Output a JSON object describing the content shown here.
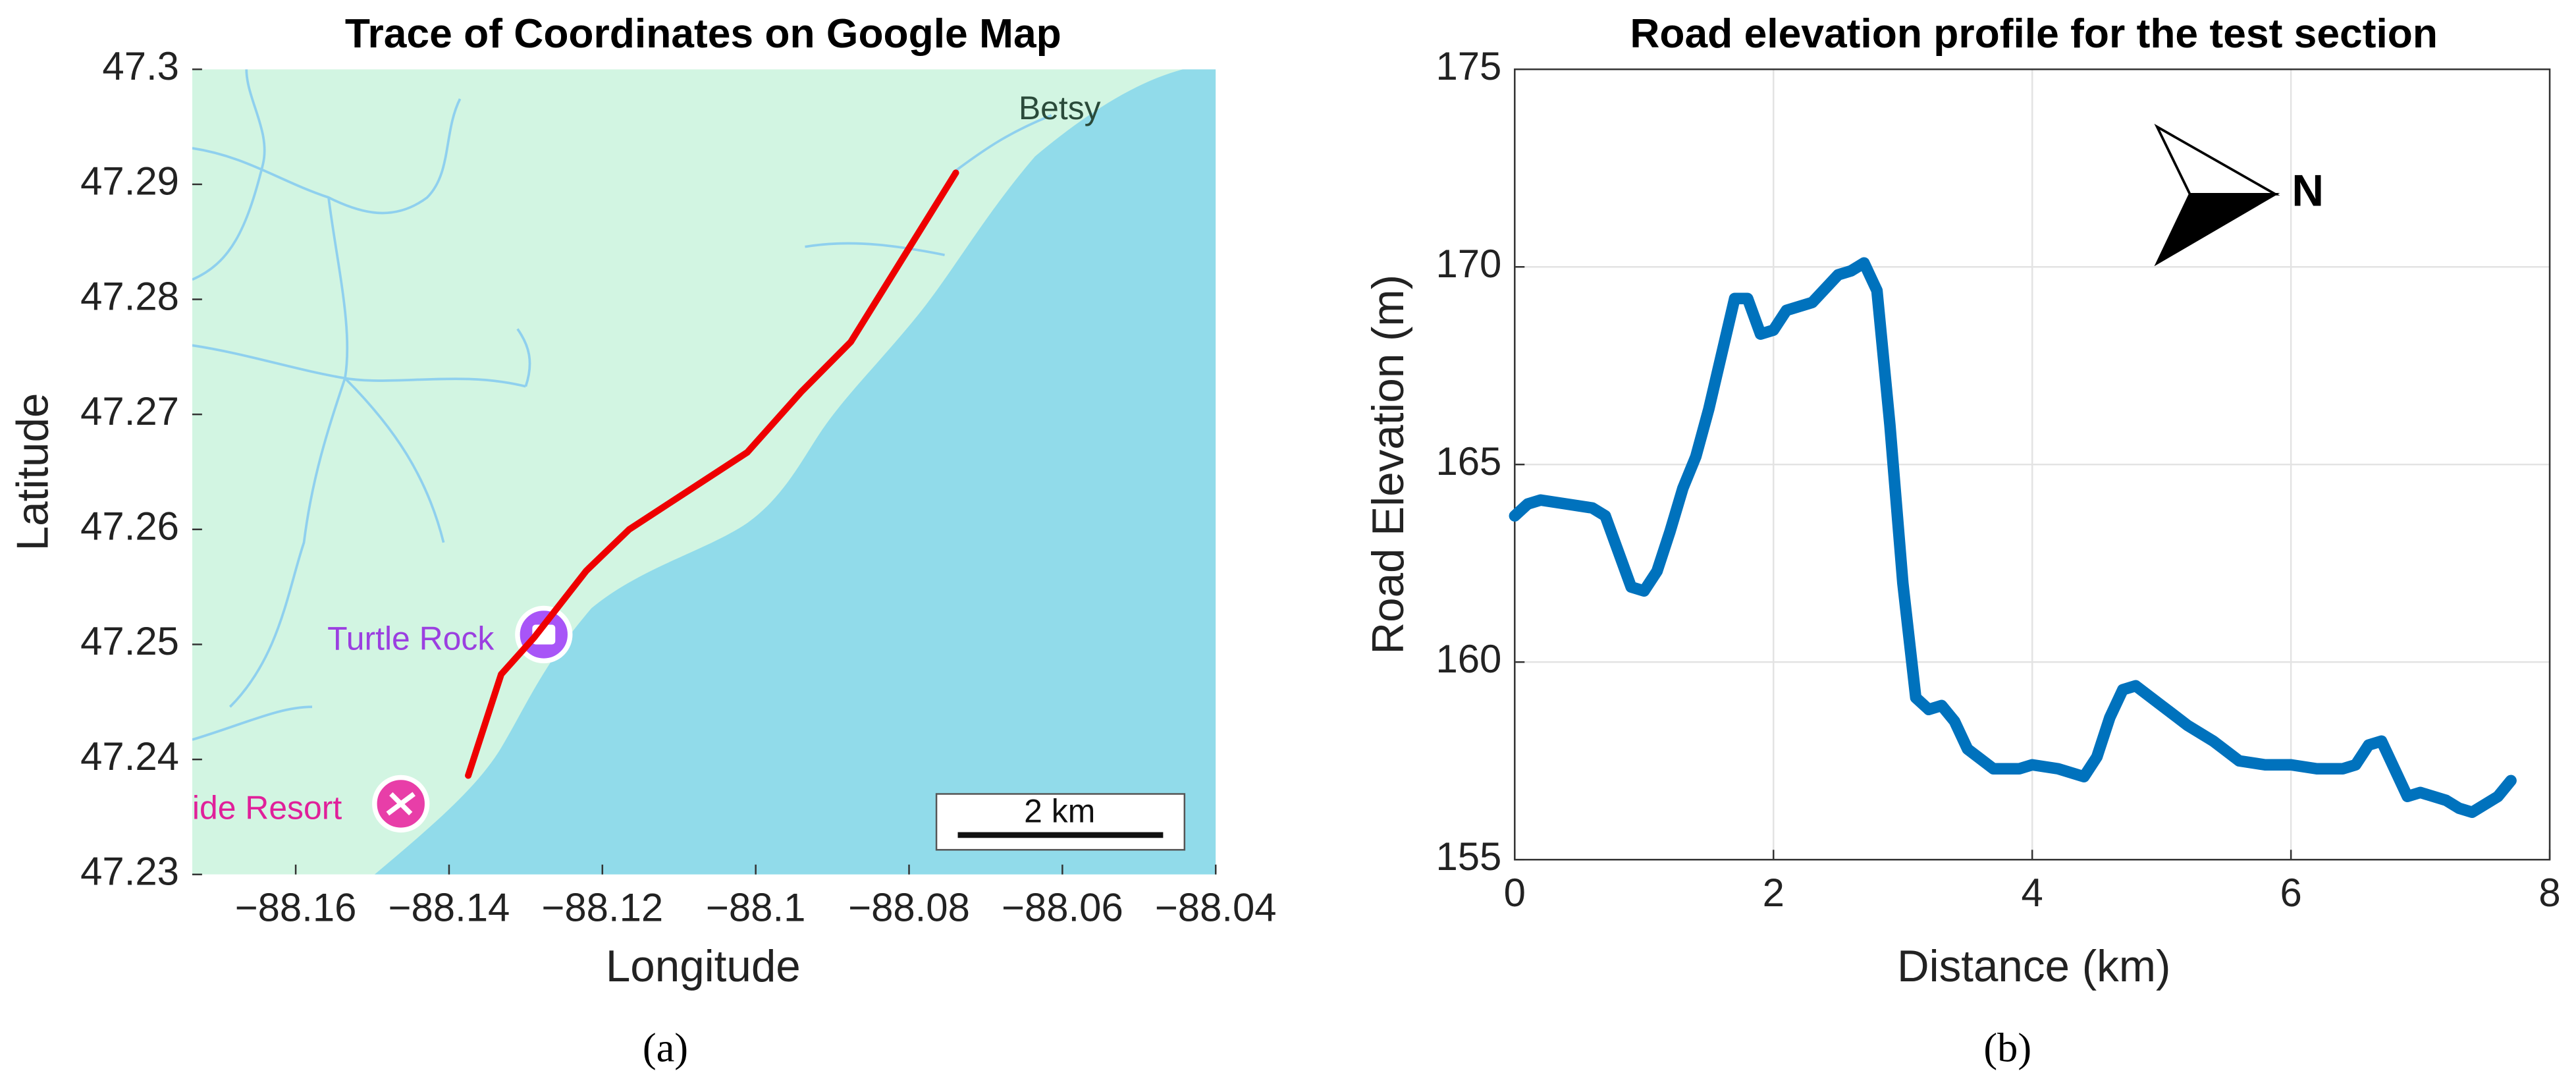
{
  "chart_data": [
    {
      "type": "line",
      "title": "Trace of Coordinates on Google Map",
      "caption": "(a)",
      "x_label": "Longitude",
      "y_label": "Latitude",
      "x": [
        -88.1375,
        -88.1332,
        -88.1289,
        -88.1221,
        -88.1165,
        -88.1011,
        -88.094,
        -88.0876,
        -88.0739
      ],
      "values": [
        47.2386,
        47.2474,
        47.2506,
        47.2564,
        47.26,
        47.2667,
        47.272,
        47.2763,
        47.291
      ],
      "color": "#ee0000",
      "xlim": [
        -88.1735,
        -88.04
      ],
      "xticks": [
        {
          "value": -88.16,
          "label": "−88.16"
        },
        {
          "value": -88.14,
          "label": "−88.14"
        },
        {
          "value": -88.12,
          "label": "−88.12"
        },
        {
          "value": -88.1,
          "label": "−88.1"
        },
        {
          "value": -88.08,
          "label": "−88.08"
        },
        {
          "value": -88.06,
          "label": "−88.06"
        },
        {
          "value": -88.04,
          "label": "−88.04"
        }
      ],
      "ylim": [
        47.23,
        47.3
      ],
      "yticks": [
        47.23,
        47.24,
        47.25,
        47.26,
        47.27,
        47.28,
        47.29,
        47.3
      ],
      "grid": false,
      "annotations": [
        "Betsy",
        "Turtle Rock",
        "ide Resort",
        "2 km"
      ]
    },
    {
      "type": "line",
      "title": "Road elevation profile for the test section",
      "caption": "(b)",
      "x_label": "Distance (km)",
      "y_label": "Road Elevation (m)",
      "x": [
        0,
        0.1,
        0.2,
        0.4,
        0.6,
        0.7,
        0.8,
        0.9,
        1.0,
        1.1,
        1.2,
        1.3,
        1.4,
        1.5,
        1.6,
        1.7,
        1.8,
        1.9,
        2.0,
        2.1,
        2.3,
        2.5,
        2.6,
        2.7,
        2.8,
        2.9,
        3.0,
        3.1,
        3.2,
        3.3,
        3.4,
        3.5,
        3.7,
        3.9,
        4.0,
        4.2,
        4.4,
        4.5,
        4.6,
        4.7,
        4.8,
        5.0,
        5.2,
        5.4,
        5.6,
        5.8,
        6.0,
        6.2,
        6.4,
        6.5,
        6.6,
        6.7,
        6.8,
        6.9,
        7.0,
        7.2,
        7.3,
        7.4,
        7.5,
        7.6,
        7.7
      ],
      "values": [
        163.7,
        164.0,
        164.1,
        164.0,
        163.9,
        163.7,
        162.8,
        161.9,
        161.8,
        162.3,
        163.3,
        164.4,
        165.2,
        166.4,
        167.8,
        169.2,
        169.2,
        168.3,
        168.4,
        168.9,
        169.1,
        169.8,
        169.9,
        170.1,
        169.4,
        166.0,
        162.0,
        159.1,
        158.8,
        158.9,
        158.5,
        157.8,
        157.3,
        157.3,
        157.4,
        157.3,
        157.1,
        157.6,
        158.6,
        159.3,
        159.4,
        158.9,
        158.4,
        158.0,
        157.5,
        157.4,
        157.4,
        157.3,
        157.3,
        157.4,
        157.9,
        158.0,
        157.3,
        156.6,
        156.7,
        156.5,
        156.3,
        156.2,
        156.4,
        156.6,
        157.0
      ],
      "color": "#0072bd",
      "xlim": [
        0,
        8
      ],
      "xticks": [
        0,
        2,
        4,
        6,
        8
      ],
      "ylim": [
        155,
        175
      ],
      "yticks": [
        155,
        160,
        165,
        170,
        175
      ],
      "grid": true,
      "annotations": [
        "N"
      ]
    }
  ]
}
